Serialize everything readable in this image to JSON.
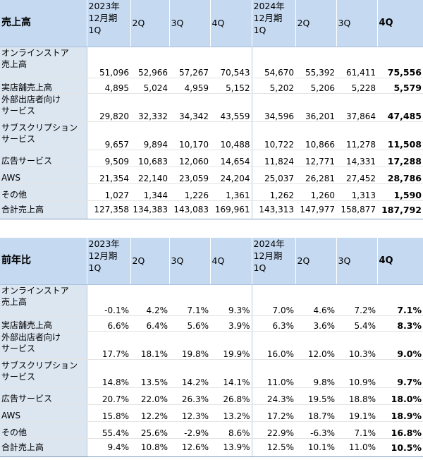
{
  "sales": {
    "title": "売上高",
    "headers": [
      {
        "line1": "2023年",
        "line2": "12月期",
        "line3": "1Q"
      },
      {
        "line1": "",
        "line2": "2Q",
        "line3": ""
      },
      {
        "line1": "",
        "line2": "3Q",
        "line3": ""
      },
      {
        "line1": "",
        "line2": "4Q",
        "line3": ""
      },
      {
        "line1": "2024年",
        "line2": "12月期",
        "line3": "1Q"
      },
      {
        "line1": "",
        "line2": "2Q",
        "line3": ""
      },
      {
        "line1": "",
        "line2": "3Q",
        "line3": ""
      },
      {
        "line1": "",
        "line2": "4Q",
        "line3": ""
      }
    ],
    "rows": [
      {
        "label1": "オンラインストア",
        "label2": "売上高",
        "values": [
          "51,096",
          "52,966",
          "57,267",
          "70,543",
          "54,670",
          "55,392",
          "61,411",
          "75,556"
        ]
      },
      {
        "label1": "実店舗売上高",
        "label2": "",
        "values": [
          "4,895",
          "5,024",
          "4,959",
          "5,152",
          "5,202",
          "5,206",
          "5,228",
          "5,579"
        ]
      },
      {
        "label1": "外部出店者向け",
        "label2": "サービス",
        "values": [
          "29,820",
          "32,332",
          "34,342",
          "43,559",
          "34,596",
          "36,201",
          "37,864",
          "47,485"
        ]
      },
      {
        "label1": "サブスクリプション",
        "label2": "サービス",
        "values": [
          "9,657",
          "9,894",
          "10,170",
          "10,488",
          "10,722",
          "10,866",
          "11,278",
          "11,508"
        ]
      },
      {
        "label1": "広告サービス",
        "label2": "",
        "values": [
          "9,509",
          "10,683",
          "12,060",
          "14,654",
          "11,824",
          "12,771",
          "14,331",
          "17,288"
        ]
      },
      {
        "label1": "AWS",
        "label2": "",
        "values": [
          "21,354",
          "22,140",
          "23,059",
          "24,204",
          "25,037",
          "26,281",
          "27,452",
          "28,786"
        ]
      },
      {
        "label1": "その他",
        "label2": "",
        "values": [
          "1,027",
          "1,344",
          "1,226",
          "1,361",
          "1,262",
          "1,260",
          "1,313",
          "1,590"
        ]
      }
    ],
    "total": {
      "label": "合計売上高",
      "values": [
        "127,358",
        "134,383",
        "143,083",
        "169,961",
        "143,313",
        "147,977",
        "158,877",
        "187,792"
      ]
    }
  },
  "yoy": {
    "title": "前年比",
    "headers": [
      {
        "line1": "2023年",
        "line2": "12月期",
        "line3": "1Q"
      },
      {
        "line1": "",
        "line2": "2Q",
        "line3": ""
      },
      {
        "line1": "",
        "line2": "3Q",
        "line3": ""
      },
      {
        "line1": "",
        "line2": "4Q",
        "line3": ""
      },
      {
        "line1": "2024年",
        "line2": "12月期",
        "line3": "1Q"
      },
      {
        "line1": "",
        "line2": "2Q",
        "line3": ""
      },
      {
        "line1": "",
        "line2": "3Q",
        "line3": ""
      },
      {
        "line1": "",
        "line2": "4Q",
        "line3": ""
      }
    ],
    "rows": [
      {
        "label1": "オンラインストア",
        "label2": "売上高",
        "values": [
          "-0.1%",
          "4.2%",
          "7.1%",
          "9.3%",
          "7.0%",
          "4.6%",
          "7.2%",
          "7.1%"
        ]
      },
      {
        "label1": "実店舗売上高",
        "label2": "",
        "values": [
          "6.6%",
          "6.4%",
          "5.6%",
          "3.9%",
          "6.3%",
          "3.6%",
          "5.4%",
          "8.3%"
        ]
      },
      {
        "label1": "外部出店者向け",
        "label2": "サービス",
        "values": [
          "17.7%",
          "18.1%",
          "19.8%",
          "19.9%",
          "16.0%",
          "12.0%",
          "10.3%",
          "9.0%"
        ]
      },
      {
        "label1": "サブスクリプション",
        "label2": "サービス",
        "values": [
          "14.8%",
          "13.5%",
          "14.2%",
          "14.1%",
          "11.0%",
          "9.8%",
          "10.9%",
          "9.7%"
        ]
      },
      {
        "label1": "広告サービス",
        "label2": "",
        "values": [
          "20.7%",
          "22.0%",
          "26.3%",
          "26.8%",
          "24.3%",
          "19.5%",
          "18.8%",
          "18.0%"
        ]
      },
      {
        "label1": "AWS",
        "label2": "",
        "values": [
          "15.8%",
          "12.2%",
          "12.3%",
          "13.2%",
          "17.2%",
          "18.7%",
          "19.1%",
          "18.9%"
        ]
      },
      {
        "label1": "その他",
        "label2": "",
        "values": [
          "55.4%",
          "25.6%",
          "-2.9%",
          "8.6%",
          "22.9%",
          "-6.3%",
          "7.1%",
          "16.8%"
        ]
      }
    ],
    "total": {
      "label": "合計売上高",
      "values": [
        "9.4%",
        "10.8%",
        "12.6%",
        "13.9%",
        "12.5%",
        "10.1%",
        "11.0%",
        "10.5%"
      ]
    }
  }
}
